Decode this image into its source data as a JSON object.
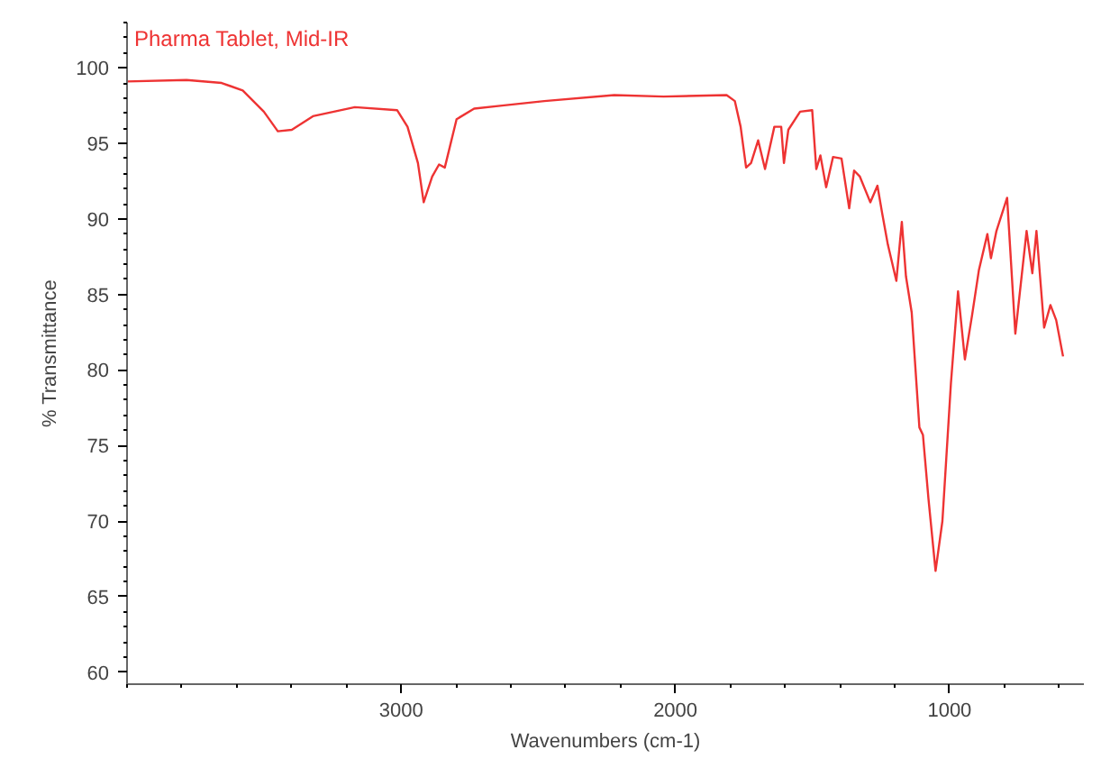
{
  "chart_data": {
    "type": "line",
    "title": "Pharma Tablet, Mid-IR",
    "xlabel": "Wavenumbers (cm-1)",
    "ylabel": "% Transmittance",
    "xlim": [
      4000,
      510
    ],
    "ylim": [
      59.2,
      103
    ],
    "xticks": [
      3000,
      2000,
      1000
    ],
    "yticks": [
      60,
      65,
      70,
      75,
      80,
      85,
      90,
      95,
      100
    ],
    "grid": false,
    "x": [
      4000,
      3783,
      3655,
      3578,
      3501,
      3450,
      3399,
      3322,
      3169,
      3015,
      2977,
      2939,
      2918,
      2887,
      2862,
      2841,
      2798,
      2734,
      2632,
      2478,
      2223,
      2043,
      1813,
      1783,
      1762,
      1742,
      1724,
      1698,
      1673,
      1639,
      1614,
      1604,
      1588,
      1545,
      1501,
      1486,
      1471,
      1450,
      1425,
      1394,
      1366,
      1348,
      1327,
      1289,
      1263,
      1246,
      1225,
      1194,
      1174,
      1159,
      1138,
      1110,
      1097,
      1077,
      1051,
      1026,
      995,
      969,
      944,
      918,
      893,
      862,
      849,
      829,
      790,
      760,
      719,
      698,
      683,
      655,
      632,
      611,
      586
    ],
    "series": [
      {
        "color": "#ee3333",
        "values": [
          99.1,
          99.2,
          99.0,
          98.5,
          97.1,
          95.8,
          95.9,
          96.8,
          97.4,
          97.2,
          96.1,
          93.7,
          91.1,
          92.8,
          93.6,
          93.4,
          96.6,
          97.3,
          97.5,
          97.8,
          98.2,
          98.1,
          98.2,
          97.8,
          96.1,
          93.4,
          93.7,
          95.2,
          93.3,
          96.1,
          96.1,
          93.7,
          95.9,
          97.1,
          97.2,
          93.3,
          94.2,
          92.1,
          94.1,
          94.0,
          90.7,
          93.2,
          92.8,
          91.1,
          92.2,
          90.4,
          88.3,
          85.9,
          89.8,
          86.2,
          83.8,
          76.2,
          75.7,
          71.5,
          66.7,
          70.0,
          79.1,
          85.2,
          80.7,
          83.6,
          86.6,
          89.0,
          87.4,
          89.2,
          91.4,
          82.4,
          89.2,
          86.4,
          89.2,
          82.8,
          84.3,
          83.3,
          80.9
        ]
      }
    ]
  }
}
